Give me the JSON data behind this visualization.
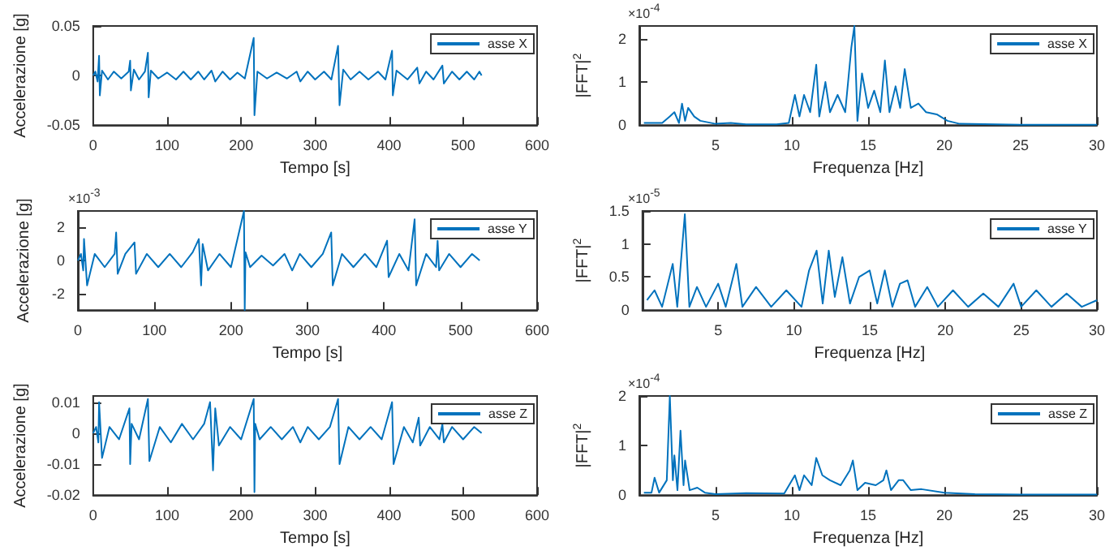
{
  "chart_data": [
    {
      "type": "line",
      "xlabel": "Tempo [s]",
      "ylabel": "Accelerazione [g]",
      "xlim": [
        0,
        600
      ],
      "xticks": [
        0,
        100,
        200,
        300,
        400,
        500,
        600
      ],
      "ylim": [
        -0.05,
        0.05
      ],
      "yticks": [
        -0.05,
        0,
        0.05
      ],
      "grid": false,
      "legend": "top right",
      "marker": "none",
      "line_style": "solid",
      "x": [
        0,
        3,
        6,
        8,
        9,
        12,
        20,
        28,
        38,
        48,
        50,
        51,
        55,
        62,
        70,
        74,
        75,
        78,
        88,
        100,
        112,
        122,
        132,
        142,
        150,
        160,
        165,
        175,
        185,
        195,
        205,
        217,
        218,
        222,
        235,
        248,
        262,
        275,
        280,
        290,
        300,
        312,
        322,
        331,
        333,
        338,
        348,
        360,
        372,
        385,
        395,
        404,
        405,
        410,
        425,
        438,
        441,
        450,
        460,
        472,
        474,
        485,
        495,
        505,
        515,
        522,
        525
      ],
      "series": [
        {
          "name": "asse X",
          "color": "#0072bd",
          "values": [
            0,
            0.004,
            -0.006,
            0.02,
            -0.02,
            0.005,
            -0.004,
            0.004,
            -0.003,
            0.004,
            0.015,
            -0.015,
            0.006,
            -0.004,
            0.004,
            0.023,
            -0.022,
            0.005,
            -0.003,
            0.003,
            -0.004,
            0.004,
            -0.004,
            0.004,
            -0.004,
            0.005,
            -0.006,
            0.004,
            -0.004,
            0.003,
            -0.003,
            0.038,
            -0.04,
            0.004,
            -0.003,
            0.003,
            -0.003,
            0.004,
            -0.006,
            0.004,
            -0.004,
            0.004,
            -0.004,
            0.03,
            -0.03,
            0.006,
            -0.004,
            0.004,
            -0.004,
            0.004,
            -0.004,
            0.025,
            -0.02,
            0.005,
            -0.004,
            0.008,
            -0.008,
            0.004,
            -0.004,
            0.01,
            -0.008,
            0.004,
            -0.004,
            0.004,
            -0.004,
            0.004,
            0
          ]
        }
      ]
    },
    {
      "type": "line",
      "xlabel": "Frequenza [Hz]",
      "ylabel": "|FFT|$^{2}$",
      "annotations": [
        "×10$^{-4}$"
      ],
      "xlim": [
        0,
        30
      ],
      "xticks": [
        5,
        10,
        15,
        20,
        25,
        30
      ],
      "ylim": [
        0,
        2.3
      ],
      "yticks": [
        0,
        1,
        2
      ],
      "grid": false,
      "legend": "top right",
      "marker": "none",
      "line_style": "solid",
      "x": [
        0.3,
        1.5,
        2,
        2.3,
        2.6,
        2.8,
        3,
        3.2,
        3.6,
        4,
        5,
        6,
        7,
        9,
        9.8,
        10.2,
        10.5,
        10.8,
        11.2,
        11.6,
        11.8,
        12.2,
        12.5,
        13,
        13.5,
        13.9,
        14.1,
        14.3,
        14.6,
        15,
        15.4,
        15.8,
        16.1,
        16.4,
        16.8,
        17.1,
        17.4,
        17.8,
        18.3,
        18.8,
        19.5,
        20.2,
        21,
        25,
        30
      ],
      "series": [
        {
          "name": "asse X",
          "color": "#0072bd",
          "values": [
            0.05,
            0.05,
            0.2,
            0.3,
            0.05,
            0.5,
            0.1,
            0.4,
            0.2,
            0.1,
            0.03,
            0.05,
            0.02,
            0.02,
            0.05,
            0.7,
            0.2,
            0.7,
            0.3,
            1.4,
            0.2,
            1.0,
            0.3,
            0.7,
            0.3,
            1.8,
            2.3,
            0.1,
            1.2,
            0.4,
            0.8,
            0.3,
            1.5,
            0.3,
            0.9,
            0.4,
            1.3,
            0.4,
            0.5,
            0.3,
            0.25,
            0.1,
            0.03,
            0.01,
            0.01
          ]
        }
      ]
    },
    {
      "type": "line",
      "xlabel": "Tempo [s]",
      "ylabel": "Accelerazione [g]",
      "annotations": [
        "×10$^{-3}$"
      ],
      "xlim": [
        0,
        600
      ],
      "xticks": [
        0,
        100,
        200,
        300,
        400,
        500,
        600
      ],
      "ylim": [
        -3,
        3
      ],
      "yticks": [
        -2,
        0,
        2
      ],
      "grid": false,
      "legend": "top right",
      "marker": "none",
      "line_style": "solid",
      "x": [
        0,
        4,
        7,
        8,
        12,
        22,
        35,
        48,
        50,
        52,
        62,
        74,
        76,
        90,
        105,
        120,
        135,
        150,
        158,
        161,
        163,
        170,
        185,
        200,
        217,
        218,
        219,
        225,
        240,
        255,
        270,
        280,
        290,
        305,
        320,
        331,
        333,
        345,
        360,
        375,
        390,
        404,
        406,
        420,
        432,
        440,
        442,
        455,
        468,
        470,
        472,
        485,
        500,
        515,
        525
      ],
      "series": [
        {
          "name": "asse Y",
          "color": "#0072bd",
          "values": [
            0,
            0.4,
            -0.6,
            1.3,
            -1.5,
            0.4,
            -0.4,
            0.4,
            1.7,
            -0.8,
            0.4,
            1.1,
            -0.8,
            0.4,
            -0.4,
            0.4,
            -0.4,
            0.5,
            1.3,
            -1.5,
            1.0,
            -0.6,
            0.4,
            -0.4,
            3,
            -3,
            0.5,
            -0.4,
            0.3,
            -0.3,
            0.4,
            -0.6,
            0.4,
            -0.4,
            0.4,
            1.7,
            -1.5,
            0.4,
            -0.4,
            0.4,
            -0.4,
            1.2,
            -1,
            0.4,
            -0.6,
            2.5,
            -1.5,
            0.4,
            -0.4,
            1.2,
            -0.6,
            0.4,
            -0.4,
            0.4,
            0
          ]
        }
      ]
    },
    {
      "type": "line",
      "xlabel": "Frequenza [Hz]",
      "ylabel": "|FFT|$^{2}$",
      "annotations": [
        "×10$^{-5}$"
      ],
      "xlim": [
        0,
        30
      ],
      "xticks": [
        5,
        10,
        15,
        20,
        25,
        30
      ],
      "ylim": [
        0,
        1.5
      ],
      "yticks": [
        0,
        0.5,
        1,
        1.5
      ],
      "grid": false,
      "legend": "top right",
      "marker": "none",
      "line_style": "solid",
      "x": [
        0.3,
        0.8,
        1.3,
        2,
        2.3,
        2.8,
        3.1,
        3.6,
        4.2,
        5,
        5.5,
        6.2,
        6.6,
        7.5,
        8.5,
        9.5,
        10.5,
        11,
        11.5,
        11.9,
        12.3,
        12.7,
        13.2,
        13.7,
        14.3,
        15,
        15.5,
        16,
        16.5,
        17,
        17.5,
        18,
        18.8,
        19.5,
        20.5,
        21.5,
        22.5,
        23.5,
        24.5,
        25,
        26,
        27,
        28,
        29,
        30
      ],
      "series": [
        {
          "name": "asse Y",
          "color": "#0072bd",
          "values": [
            0.15,
            0.3,
            0.05,
            0.7,
            0.05,
            1.45,
            0.05,
            0.35,
            0.05,
            0.4,
            0.05,
            0.7,
            0.05,
            0.35,
            0.05,
            0.3,
            0.05,
            0.6,
            0.9,
            0.1,
            0.9,
            0.2,
            0.8,
            0.1,
            0.5,
            0.6,
            0.1,
            0.6,
            0.05,
            0.4,
            0.45,
            0.05,
            0.35,
            0.05,
            0.3,
            0.05,
            0.25,
            0.05,
            0.4,
            0.05,
            0.3,
            0.05,
            0.25,
            0.05,
            0.15
          ]
        }
      ]
    },
    {
      "type": "line",
      "xlabel": "Tempo [s]",
      "ylabel": "Accelerazione [g]",
      "xlim": [
        0,
        600
      ],
      "xticks": [
        0,
        100,
        200,
        300,
        400,
        500,
        600
      ],
      "ylim": [
        -0.02,
        0.012
      ],
      "yticks": [
        -0.02,
        -0.01,
        0,
        0.01
      ],
      "grid": false,
      "legend": "top right",
      "marker": "none",
      "line_style": "solid",
      "x": [
        0,
        4,
        7,
        8,
        12,
        22,
        35,
        49,
        50,
        52,
        62,
        74,
        76,
        90,
        105,
        120,
        135,
        150,
        158,
        162,
        165,
        170,
        185,
        200,
        217,
        218,
        219,
        225,
        240,
        255,
        270,
        280,
        290,
        305,
        320,
        331,
        333,
        345,
        360,
        375,
        390,
        404,
        406,
        420,
        432,
        440,
        442,
        455,
        468,
        472,
        474,
        485,
        500,
        515,
        525
      ],
      "series": [
        {
          "name": "asse Z",
          "color": "#0072bd",
          "values": [
            0,
            0.002,
            -0.003,
            0.01,
            -0.008,
            0.002,
            -0.002,
            0.008,
            -0.01,
            0.003,
            -0.002,
            0.011,
            -0.009,
            0.002,
            -0.003,
            0.003,
            -0.002,
            0.003,
            0.01,
            -0.012,
            0.008,
            -0.004,
            0.002,
            -0.002,
            0.011,
            -0.019,
            0.003,
            -0.002,
            0.002,
            -0.002,
            0.002,
            -0.003,
            0.002,
            -0.002,
            0.002,
            0.011,
            -0.01,
            0.002,
            -0.002,
            0.002,
            -0.002,
            0.01,
            -0.01,
            0.002,
            -0.003,
            0.005,
            -0.004,
            0.002,
            -0.002,
            0.003,
            -0.003,
            0.002,
            -0.002,
            0.002,
            0
          ]
        }
      ]
    },
    {
      "type": "line",
      "xlabel": "Frequenza [Hz]",
      "ylabel": "|FFT|$^{2}$",
      "annotations": [
        "×10$^{-4}$"
      ],
      "xlim": [
        0,
        30
      ],
      "xticks": [
        5,
        10,
        15,
        20,
        25,
        30
      ],
      "ylim": [
        0,
        2
      ],
      "yticks": [
        0,
        1,
        2
      ],
      "grid": false,
      "legend": "top right",
      "marker": "none",
      "line_style": "solid",
      "x": [
        0.3,
        0.8,
        1,
        1.3,
        1.8,
        2,
        2.2,
        2.3,
        2.5,
        2.7,
        2.9,
        3,
        3.3,
        3.8,
        4.3,
        5,
        7,
        9.5,
        10.2,
        10.5,
        10.8,
        11.3,
        11.6,
        12,
        12.5,
        13.2,
        13.8,
        14,
        14.3,
        14.8,
        15.5,
        16,
        16.2,
        16.5,
        17,
        17.3,
        17.8,
        18.5,
        20,
        22,
        25,
        30
      ],
      "series": [
        {
          "name": "asse Z",
          "color": "#0072bd",
          "values": [
            0.05,
            0.05,
            0.35,
            0.05,
            0.3,
            2.0,
            0.3,
            0.8,
            0.1,
            1.3,
            0.2,
            0.7,
            0.1,
            0.15,
            0.05,
            0.02,
            0.04,
            0.03,
            0.4,
            0.1,
            0.4,
            0.2,
            0.75,
            0.4,
            0.3,
            0.2,
            0.5,
            0.7,
            0.1,
            0.25,
            0.2,
            0.3,
            0.5,
            0.1,
            0.3,
            0.3,
            0.1,
            0.12,
            0.05,
            0.02,
            0.01,
            0.01
          ]
        }
      ]
    }
  ]
}
